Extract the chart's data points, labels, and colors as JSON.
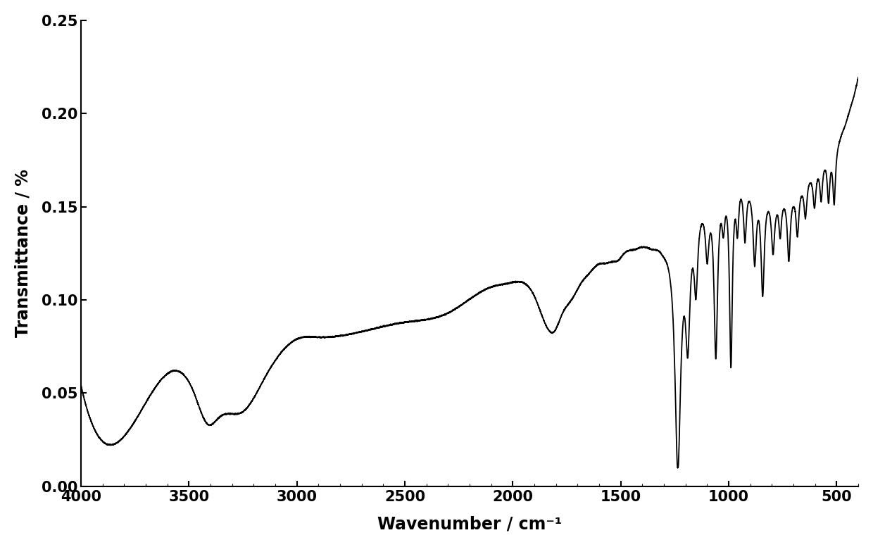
{
  "title": "",
  "xlabel": "Wavenumber / cm⁻¹",
  "ylabel": "Transmittance / %",
  "xlim": [
    4000,
    400
  ],
  "ylim": [
    0.0,
    0.25
  ],
  "yticks": [
    0.0,
    0.05,
    0.1,
    0.15,
    0.2,
    0.25
  ],
  "xticks": [
    4000,
    3500,
    3000,
    2500,
    2000,
    1500,
    1000,
    500
  ],
  "line_color": "#000000",
  "line_width": 1.3,
  "background_color": "#ffffff",
  "tick_fontsize": 15,
  "label_fontsize": 17,
  "label_fontweight": "bold"
}
